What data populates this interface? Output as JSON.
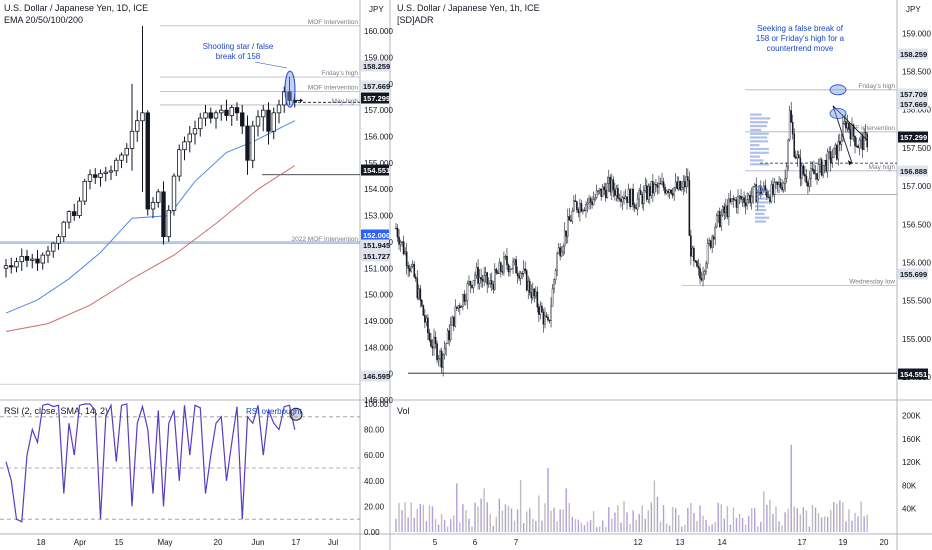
{
  "chart_data": [
    {
      "type": "candlestick",
      "title": "U.S. Dollar / Japanese Yen, 1D, ICE",
      "subtitle": "EMA 20/50/100/200",
      "currency": "JPY",
      "ylim": [
        146.0,
        160.5
      ],
      "y_ticks": [
        "160.000",
        "159.000",
        "158.000",
        "157.000",
        "156.000",
        "155.000",
        "154.000",
        "153.000",
        "152.000",
        "151.000",
        "150.000",
        "149.000",
        "148.000",
        "147.000",
        "146.000"
      ],
      "x_ticks": [
        "18",
        "Apr",
        "15",
        "May",
        "20",
        "Jun",
        "17",
        "Jul"
      ],
      "price_badges": [
        {
          "value": "158.259",
          "style": "gray"
        },
        {
          "value": "157.669",
          "style": "gray"
        },
        {
          "value": "157.299",
          "style": "dark"
        },
        {
          "value": "154.551",
          "style": "dark"
        },
        {
          "value": "152.000",
          "style": "blue"
        },
        {
          "value": "151.945",
          "style": "gray"
        },
        {
          "value": "151.727",
          "style": "gray"
        },
        {
          "value": "146.595",
          "style": "gray"
        }
      ],
      "line_labels": [
        {
          "text": "MOF Intervention",
          "y": 160.2
        },
        {
          "text": "Friday's high",
          "y": 158.26
        },
        {
          "text": "MOF Intervention",
          "y": 157.71
        },
        {
          "text": "May high",
          "y": 157.2
        },
        {
          "text": "2022 MOF Intervention",
          "y": 151.95
        }
      ],
      "annotations": [
        "Shooting star / false",
        "break of 158"
      ],
      "ohlc": [
        [
          151.0,
          151.35,
          150.65,
          151.1
        ],
        [
          151.1,
          151.4,
          150.8,
          151.05
        ],
        [
          151.05,
          151.4,
          150.85,
          151.25
        ],
        [
          151.25,
          151.75,
          150.9,
          151.45
        ],
        [
          151.45,
          151.7,
          151.05,
          151.3
        ],
        [
          151.3,
          151.55,
          151.0,
          151.35
        ],
        [
          151.35,
          151.7,
          150.9,
          151.2
        ],
        [
          151.2,
          151.6,
          150.95,
          151.5
        ],
        [
          151.5,
          151.85,
          151.2,
          151.65
        ],
        [
          151.65,
          152.0,
          151.4,
          151.95
        ],
        [
          151.95,
          152.3,
          151.7,
          152.2
        ],
        [
          152.2,
          152.8,
          152.0,
          152.75
        ],
        [
          152.75,
          153.2,
          152.5,
          153.15
        ],
        [
          153.15,
          153.45,
          152.8,
          153.0
        ],
        [
          153.0,
          153.7,
          152.9,
          153.55
        ],
        [
          153.55,
          154.4,
          153.4,
          154.3
        ],
        [
          154.3,
          154.75,
          154.0,
          154.55
        ],
        [
          154.55,
          154.8,
          154.2,
          154.45
        ],
        [
          154.45,
          154.75,
          154.1,
          154.6
        ],
        [
          154.6,
          154.85,
          154.3,
          154.65
        ],
        [
          154.65,
          154.9,
          154.35,
          154.7
        ],
        [
          154.7,
          155.2,
          154.5,
          155.1
        ],
        [
          155.1,
          155.4,
          154.8,
          155.3
        ],
        [
          155.3,
          155.75,
          155.0,
          155.55
        ],
        [
          155.55,
          158.0,
          154.7,
          156.2
        ],
        [
          156.2,
          157.0,
          155.8,
          156.6
        ],
        [
          156.6,
          160.2,
          153.9,
          156.9
        ],
        [
          156.9,
          157.0,
          153.0,
          153.25
        ],
        [
          153.25,
          153.7,
          152.9,
          153.5
        ],
        [
          153.5,
          154.0,
          153.3,
          153.9
        ],
        [
          153.9,
          154.3,
          151.9,
          152.2
        ],
        [
          152.2,
          153.4,
          152.0,
          153.2
        ],
        [
          153.2,
          154.6,
          153.0,
          154.5
        ],
        [
          154.5,
          155.7,
          154.3,
          155.5
        ],
        [
          155.5,
          156.0,
          155.1,
          155.8
        ],
        [
          155.8,
          156.4,
          155.4,
          156.1
        ],
        [
          156.1,
          156.6,
          155.7,
          156.3
        ],
        [
          156.3,
          156.9,
          156.0,
          156.7
        ],
        [
          156.7,
          157.2,
          156.4,
          156.9
        ],
        [
          156.9,
          157.1,
          156.5,
          156.7
        ],
        [
          156.7,
          157.0,
          156.3,
          156.9
        ],
        [
          156.9,
          157.2,
          156.6,
          157.0
        ],
        [
          157.0,
          157.4,
          156.6,
          156.8
        ],
        [
          156.8,
          157.2,
          156.4,
          157.1
        ],
        [
          157.1,
          157.3,
          156.6,
          156.9
        ],
        [
          156.9,
          157.2,
          156.1,
          156.4
        ],
        [
          156.4,
          156.8,
          154.55,
          155.1
        ],
        [
          155.1,
          156.6,
          154.8,
          156.4
        ],
        [
          156.4,
          157.0,
          156.0,
          156.75
        ],
        [
          156.75,
          157.2,
          156.2,
          157.0
        ],
        [
          157.0,
          157.3,
          155.7,
          156.2
        ],
        [
          156.2,
          157.1,
          155.9,
          156.9
        ],
        [
          156.9,
          157.4,
          156.5,
          157.2
        ],
        [
          157.2,
          157.9,
          156.9,
          157.7
        ],
        [
          157.7,
          158.26,
          157.2,
          157.37
        ],
        [
          157.37,
          157.6,
          157.1,
          157.3
        ]
      ],
      "ema_short": [
        [
          31,
          153.0
        ],
        [
          46,
          156.0
        ],
        [
          55,
          156.6
        ]
      ],
      "ema_long": [
        [
          0,
          149.3
        ],
        [
          55,
          155.4
        ]
      ]
    },
    {
      "type": "line",
      "title": "RSI (2, close, SMA, 14, 2)",
      "ylim": [
        0,
        100
      ],
      "y_ticks": [
        "100.00",
        "80.00",
        "60.00",
        "40.00",
        "20.00",
        "0.00"
      ],
      "guides": [
        90,
        50,
        10
      ],
      "annotation": "RSI overbought",
      "values": [
        55,
        40,
        10,
        8,
        60,
        80,
        70,
        99,
        100,
        98,
        99,
        30,
        85,
        60,
        99,
        100,
        100,
        95,
        10,
        90,
        99,
        55,
        99,
        100,
        20,
        85,
        98,
        80,
        30,
        95,
        20,
        85,
        95,
        40,
        99,
        60,
        99,
        97,
        30,
        60,
        85,
        90,
        40,
        70,
        98,
        10,
        90,
        85,
        99,
        60,
        95,
        85,
        80,
        98,
        99,
        80
      ]
    },
    {
      "type": "candlestick",
      "title": "U.S. Dollar / Japanese Yen, 1h, ICE",
      "subtitle": "[SD]ADR",
      "currency": "JPY",
      "ylim": [
        154.2,
        159.2
      ],
      "y_ticks": [
        "159.000",
        "158.500",
        "158.000",
        "157.500",
        "157.000",
        "156.500",
        "156.000",
        "155.500",
        "155.000",
        "154.500"
      ],
      "x_ticks": [
        "5",
        "6",
        "7",
        "12",
        "13",
        "14",
        "17",
        "19",
        "20"
      ],
      "price_badges": [
        {
          "value": "158.259",
          "style": "gray"
        },
        {
          "value": "157.709",
          "style": "gray"
        },
        {
          "value": "157.669",
          "style": "gray"
        },
        {
          "value": "157.299",
          "style": "dark"
        },
        {
          "value": "156.888",
          "style": "gray"
        },
        {
          "value": "155.699",
          "style": "gray"
        },
        {
          "value": "154.551",
          "style": "dark"
        }
      ],
      "line_labels": [
        {
          "text": "Friday's high",
          "y": 158.26
        },
        {
          "text": "MOF Intervention",
          "y": 157.71
        },
        {
          "text": "May high",
          "y": 157.2
        },
        {
          "text": "Wednesday low",
          "y": 155.7
        }
      ],
      "annotations": [
        "Seeking a false break of",
        "158 or Friday's high for a",
        "countertrend move"
      ],
      "anchors": [
        [
          0,
          156.45
        ],
        [
          12,
          155.8
        ],
        [
          22,
          155.0
        ],
        [
          30,
          154.75
        ],
        [
          40,
          155.4
        ],
        [
          52,
          155.85
        ],
        [
          62,
          155.7
        ],
        [
          72,
          156.0
        ],
        [
          82,
          155.9
        ],
        [
          92,
          155.5
        ],
        [
          100,
          155.15
        ],
        [
          106,
          156.1
        ],
        [
          118,
          156.75
        ],
        [
          128,
          156.8
        ],
        [
          140,
          157.0
        ],
        [
          150,
          156.9
        ],
        [
          158,
          156.8
        ],
        [
          168,
          156.95
        ],
        [
          178,
          157.0
        ],
        [
          188,
          156.95
        ],
        [
          192,
          157.1
        ],
        [
          193,
          156.3
        ],
        [
          196,
          155.95
        ],
        [
          200,
          155.8
        ],
        [
          210,
          156.5
        ],
        [
          222,
          156.8
        ],
        [
          232,
          156.85
        ],
        [
          240,
          156.95
        ],
        [
          248,
          156.9
        ],
        [
          256,
          157.1
        ],
        [
          259,
          157.95
        ],
        [
          262,
          157.5
        ],
        [
          266,
          157.2
        ],
        [
          272,
          157.1
        ],
        [
          280,
          157.25
        ],
        [
          290,
          157.45
        ],
        [
          296,
          157.85
        ],
        [
          304,
          157.55
        ],
        [
          310,
          157.6
        ]
      ]
    },
    {
      "type": "bar",
      "title": "Vol",
      "ylim": [
        0,
        220000
      ],
      "y_ticks": [
        "200K",
        "160K",
        "120K",
        "80K",
        "40K"
      ]
    }
  ]
}
